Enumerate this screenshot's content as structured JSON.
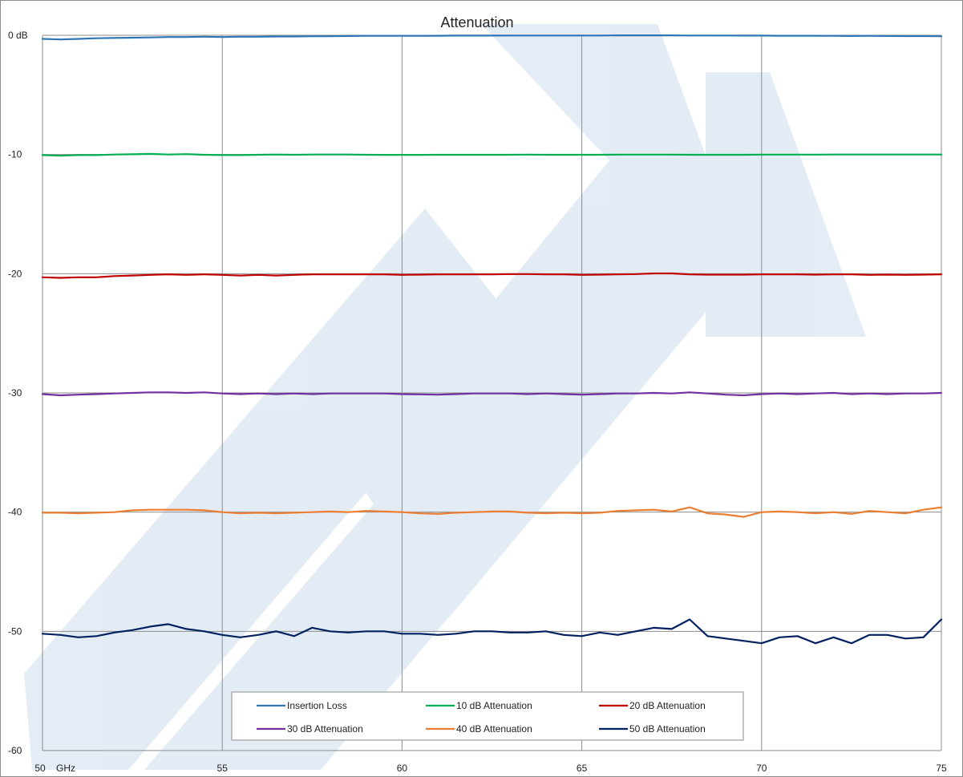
{
  "chart_data": {
    "type": "line",
    "title": "Attenuation",
    "xlabel": "GHz",
    "ylabel": "",
    "xlim": [
      50,
      75
    ],
    "ylim": [
      -60,
      0
    ],
    "grid": true,
    "legend_position": "bottom-center",
    "x_ticks": [
      {
        "value": 50,
        "label": "50"
      },
      {
        "value": 55,
        "label": "55"
      },
      {
        "value": 60,
        "label": "60"
      },
      {
        "value": 65,
        "label": "65"
      },
      {
        "value": 70,
        "label": "70"
      },
      {
        "value": 75,
        "label": "75"
      }
    ],
    "y_ticks": [
      {
        "value": 0,
        "label": "0 dB"
      },
      {
        "value": -10,
        "label": "-10"
      },
      {
        "value": -20,
        "label": "-20"
      },
      {
        "value": -30,
        "label": "-30"
      },
      {
        "value": -40,
        "label": "-40"
      },
      {
        "value": -50,
        "label": "-50"
      },
      {
        "value": -60,
        "label": "-60"
      }
    ],
    "x": [
      50,
      50.5,
      51,
      51.5,
      52,
      52.5,
      53,
      53.5,
      54,
      54.5,
      55,
      55.5,
      56,
      56.5,
      57,
      57.5,
      58,
      58.5,
      59,
      59.5,
      60,
      60.5,
      61,
      61.5,
      62,
      62.5,
      63,
      63.5,
      64,
      64.5,
      65,
      65.5,
      66,
      66.5,
      67,
      67.5,
      68,
      68.5,
      69,
      69.5,
      70,
      70.5,
      71,
      71.5,
      72,
      72.5,
      73,
      73.5,
      74,
      74.5,
      75
    ],
    "series": [
      {
        "name": "Insertion Loss",
        "color": "#2E75B6",
        "values": [
          -0.3,
          -0.35,
          -0.3,
          -0.25,
          -0.22,
          -0.2,
          -0.18,
          -0.15,
          -0.15,
          -0.12,
          -0.15,
          -0.12,
          -0.12,
          -0.1,
          -0.1,
          -0.08,
          -0.08,
          -0.06,
          -0.05,
          -0.05,
          -0.05,
          -0.05,
          -0.04,
          -0.03,
          -0.03,
          -0.03,
          -0.02,
          -0.02,
          -0.02,
          -0.02,
          -0.02,
          -0.02,
          -0.01,
          -0.01,
          -0.01,
          -0.01,
          -0.02,
          -0.02,
          -0.02,
          -0.03,
          -0.03,
          -0.04,
          -0.04,
          -0.04,
          -0.05,
          -0.06,
          -0.05,
          -0.06,
          -0.07,
          -0.07,
          -0.08
        ]
      },
      {
        "name": "10 dB Attenuation",
        "color": "#00B050",
        "values": [
          -10.05,
          -10.1,
          -10.05,
          -10.05,
          -10.0,
          -9.98,
          -9.95,
          -10.0,
          -9.97,
          -10.02,
          -10.05,
          -10.05,
          -10.02,
          -10.0,
          -10.02,
          -10.0,
          -10.0,
          -10.0,
          -10.02,
          -10.03,
          -10.03,
          -10.03,
          -10.02,
          -10.02,
          -10.02,
          -10.02,
          -10.02,
          -10.01,
          -10.02,
          -10.02,
          -10.02,
          -10.02,
          -10.01,
          -10.01,
          -10.01,
          -10.01,
          -10.02,
          -10.02,
          -10.02,
          -10.02,
          -10.01,
          -10.01,
          -10.01,
          -10.01,
          -10.0,
          -10.0,
          -10.0,
          -10.0,
          -10.0,
          -10.0,
          -10.0
        ]
      },
      {
        "name": "20 dB Attenuation",
        "color": "#C00000",
        "values": [
          -20.3,
          -20.35,
          -20.3,
          -20.3,
          -20.2,
          -20.15,
          -20.1,
          -20.05,
          -20.1,
          -20.05,
          -20.1,
          -20.15,
          -20.1,
          -20.15,
          -20.1,
          -20.05,
          -20.05,
          -20.05,
          -20.05,
          -20.05,
          -20.1,
          -20.08,
          -20.05,
          -20.05,
          -20.05,
          -20.05,
          -20.03,
          -20.03,
          -20.05,
          -20.05,
          -20.1,
          -20.08,
          -20.05,
          -20.03,
          -19.98,
          -19.98,
          -20.05,
          -20.08,
          -20.08,
          -20.08,
          -20.05,
          -20.05,
          -20.05,
          -20.08,
          -20.05,
          -20.05,
          -20.1,
          -20.08,
          -20.1,
          -20.08,
          -20.05
        ]
      },
      {
        "name": "30 dB Attenuation",
        "color": "#7030A0",
        "values": [
          -30.1,
          -30.2,
          -30.15,
          -30.1,
          -30.05,
          -30.0,
          -29.95,
          -29.95,
          -30.0,
          -29.95,
          -30.05,
          -30.1,
          -30.05,
          -30.1,
          -30.05,
          -30.1,
          -30.05,
          -30.05,
          -30.05,
          -30.05,
          -30.1,
          -30.12,
          -30.15,
          -30.1,
          -30.05,
          -30.05,
          -30.05,
          -30.1,
          -30.05,
          -30.1,
          -30.15,
          -30.1,
          -30.05,
          -30.05,
          -30.0,
          -30.05,
          -29.95,
          -30.05,
          -30.15,
          -30.2,
          -30.1,
          -30.05,
          -30.1,
          -30.05,
          -30.0,
          -30.1,
          -30.05,
          -30.1,
          -30.05,
          -30.05,
          -30.0
        ]
      },
      {
        "name": "40 dB Attenuation",
        "color": "#ED7D31",
        "values": [
          -40.05,
          -40.05,
          -40.1,
          -40.05,
          -40.0,
          -39.85,
          -39.8,
          -39.8,
          -39.8,
          -39.85,
          -40.0,
          -40.1,
          -40.05,
          -40.1,
          -40.05,
          -40.0,
          -39.95,
          -40.0,
          -39.9,
          -39.95,
          -40.0,
          -40.1,
          -40.15,
          -40.05,
          -40.0,
          -39.95,
          -39.95,
          -40.05,
          -40.1,
          -40.05,
          -40.1,
          -40.05,
          -39.9,
          -39.85,
          -39.8,
          -39.95,
          -39.6,
          -40.1,
          -40.2,
          -40.4,
          -40.0,
          -39.95,
          -40.0,
          -40.1,
          -40.0,
          -40.15,
          -39.9,
          -40.0,
          -40.1,
          -39.8,
          -39.6
        ]
      },
      {
        "name": "50 dB Attenuation",
        "color": "#002060",
        "values": [
          -50.2,
          -50.3,
          -50.5,
          -50.4,
          -50.1,
          -49.9,
          -49.6,
          -49.4,
          -49.8,
          -50.0,
          -50.3,
          -50.5,
          -50.3,
          -50.0,
          -50.4,
          -49.7,
          -50.0,
          -50.1,
          -50.0,
          -50.0,
          -50.2,
          -50.2,
          -50.3,
          -50.2,
          -50.0,
          -50.0,
          -50.1,
          -50.1,
          -50.0,
          -50.3,
          -50.4,
          -50.1,
          -50.3,
          -50.0,
          -49.7,
          -49.8,
          -49.0,
          -50.4,
          -50.6,
          -50.8,
          -51.0,
          -50.5,
          -50.4,
          -51.0,
          -50.5,
          -51.0,
          -50.3,
          -50.3,
          -50.6,
          -50.5,
          -49.0
        ]
      }
    ]
  }
}
